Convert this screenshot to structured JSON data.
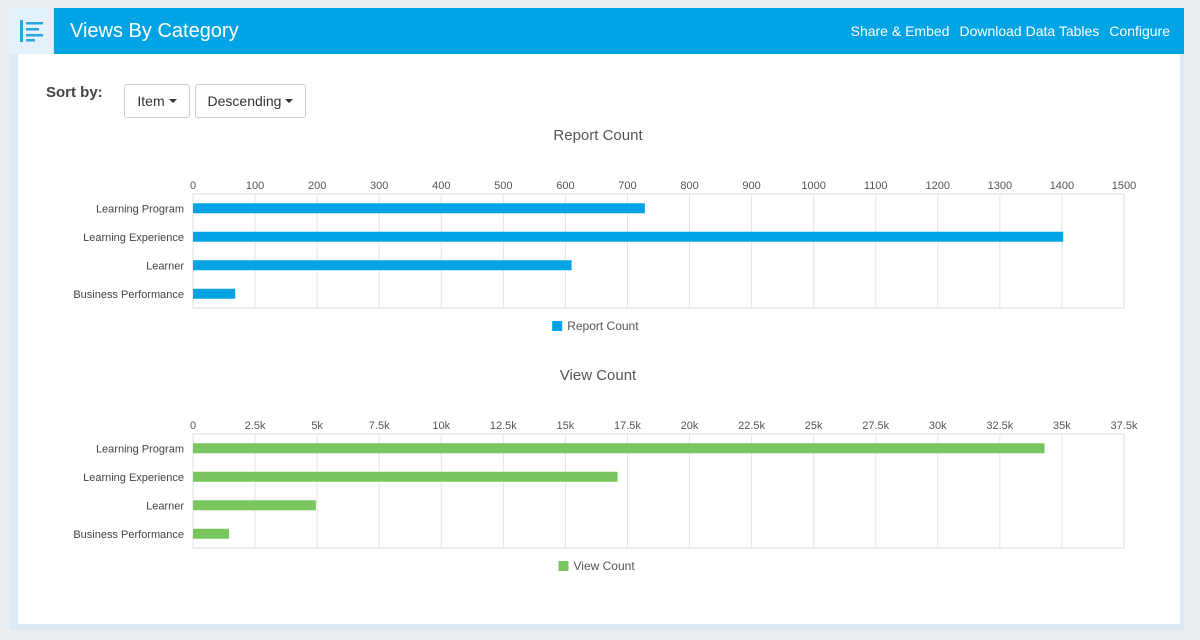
{
  "header": {
    "title": "Views By Category",
    "actions": [
      "Share & Embed",
      "Download Data Tables",
      "Configure"
    ]
  },
  "sort": {
    "label": "Sort by:",
    "field": "Item",
    "order": "Descending"
  },
  "colors": {
    "header": "#00a4e4",
    "report_bar": "#00a4e4",
    "view_bar": "#79c55e"
  },
  "chart_data": [
    {
      "type": "bar",
      "orientation": "horizontal",
      "title": "Report Count",
      "categories": [
        "Learning Program",
        "Learning Experience",
        "Learner",
        "Business Performance"
      ],
      "series": [
        {
          "name": "Report Count",
          "values": [
            728,
            1402,
            610,
            68
          ]
        }
      ],
      "xlim": [
        0,
        1500
      ],
      "ticks": [
        0,
        100,
        200,
        300,
        400,
        500,
        600,
        700,
        800,
        900,
        1000,
        1100,
        1200,
        1300,
        1400,
        1500
      ],
      "tick_labels": [
        "0",
        "100",
        "200",
        "300",
        "400",
        "500",
        "600",
        "700",
        "800",
        "900",
        "1000",
        "1100",
        "1200",
        "1300",
        "1400",
        "1500"
      ],
      "axis_position": "top",
      "grid": true,
      "legend": "bottom-center"
    },
    {
      "type": "bar",
      "orientation": "horizontal",
      "title": "View Count",
      "categories": [
        "Learning Program",
        "Learning Experience",
        "Learner",
        "Business Performance"
      ],
      "series": [
        {
          "name": "View Count",
          "values": [
            34300,
            17100,
            4950,
            1450
          ]
        }
      ],
      "xlim": [
        0,
        37500
      ],
      "ticks": [
        0,
        2500,
        5000,
        7500,
        10000,
        12500,
        15000,
        17500,
        20000,
        22500,
        25000,
        27500,
        30000,
        32500,
        35000,
        37500
      ],
      "tick_labels": [
        "0",
        "2.5k",
        "5k",
        "7.5k",
        "10k",
        "12.5k",
        "15k",
        "17.5k",
        "20k",
        "22.5k",
        "25k",
        "27.5k",
        "30k",
        "32.5k",
        "35k",
        "37.5k"
      ],
      "axis_position": "top",
      "grid": true,
      "legend": "bottom-center"
    }
  ]
}
